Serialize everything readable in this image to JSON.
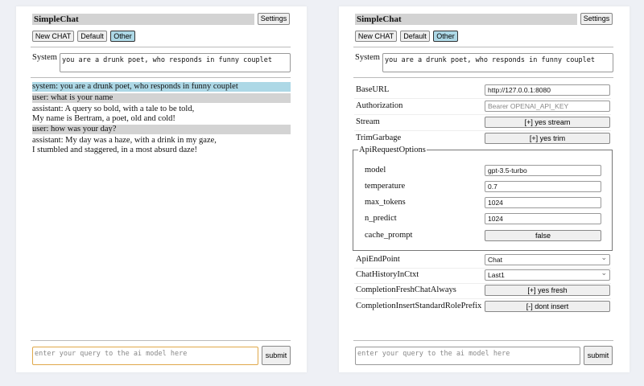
{
  "app_title": "SimpleChat",
  "settings_label": "Settings",
  "chat_buttons": [
    "New CHAT",
    "Default",
    "Other"
  ],
  "system_label": "System",
  "system_prompt": "you are a drunk poet, who responds in funny couplet",
  "messages": [
    {
      "role": "system",
      "text": "system: you are a drunk poet, who responds in funny couplet",
      "bg": "#add8e6"
    },
    {
      "role": "user",
      "text": "user: what is your name",
      "bg": "#d3d3d3"
    },
    {
      "role": "assistant",
      "lines": [
        "assistant: A query so bold, with a tale to be told,",
        "My name is Bertram, a poet, old and cold!"
      ]
    },
    {
      "role": "user",
      "text": "user: how was your day?",
      "bg": "#d3d3d3"
    },
    {
      "role": "assistant",
      "lines": [
        "assistant: My day was a haze, with a drink in my gaze,",
        "I stumbled and staggered, in a most absurd daze!"
      ]
    }
  ],
  "query_placeholder": "enter your query to the ai model here",
  "submit_label": "submit",
  "settings": {
    "base_url": {
      "label": "BaseURL",
      "value": "http://127.0.0.1:8080"
    },
    "authorization": {
      "label": "Authorization",
      "placeholder": "Bearer OPENAI_API_KEY"
    },
    "stream": {
      "label": "Stream",
      "value": "[+] yes stream"
    },
    "trim_garbage": {
      "label": "TrimGarbage",
      "value": "[+] yes trim"
    },
    "api_request_options": {
      "legend": "ApiRequestOptions",
      "model": {
        "label": "model",
        "value": "gpt-3.5-turbo"
      },
      "temperature": {
        "label": "temperature",
        "value": "0.7"
      },
      "max_tokens": {
        "label": "max_tokens",
        "value": "1024"
      },
      "n_predict": {
        "label": "n_predict",
        "value": "1024"
      },
      "cache_prompt": {
        "label": "cache_prompt",
        "value": "false"
      }
    },
    "api_endpoint": {
      "label": "ApiEndPoint",
      "value": "Chat"
    },
    "chat_history": {
      "label": "ChatHistoryInCtxt",
      "value": "Last1"
    },
    "fresh_chat": {
      "label": "CompletionFreshChatAlways",
      "value": "[+] yes fresh"
    },
    "insert_prefix": {
      "label": "CompletionInsertStandardRolePrefix",
      "value": "[-] dont insert"
    }
  }
}
